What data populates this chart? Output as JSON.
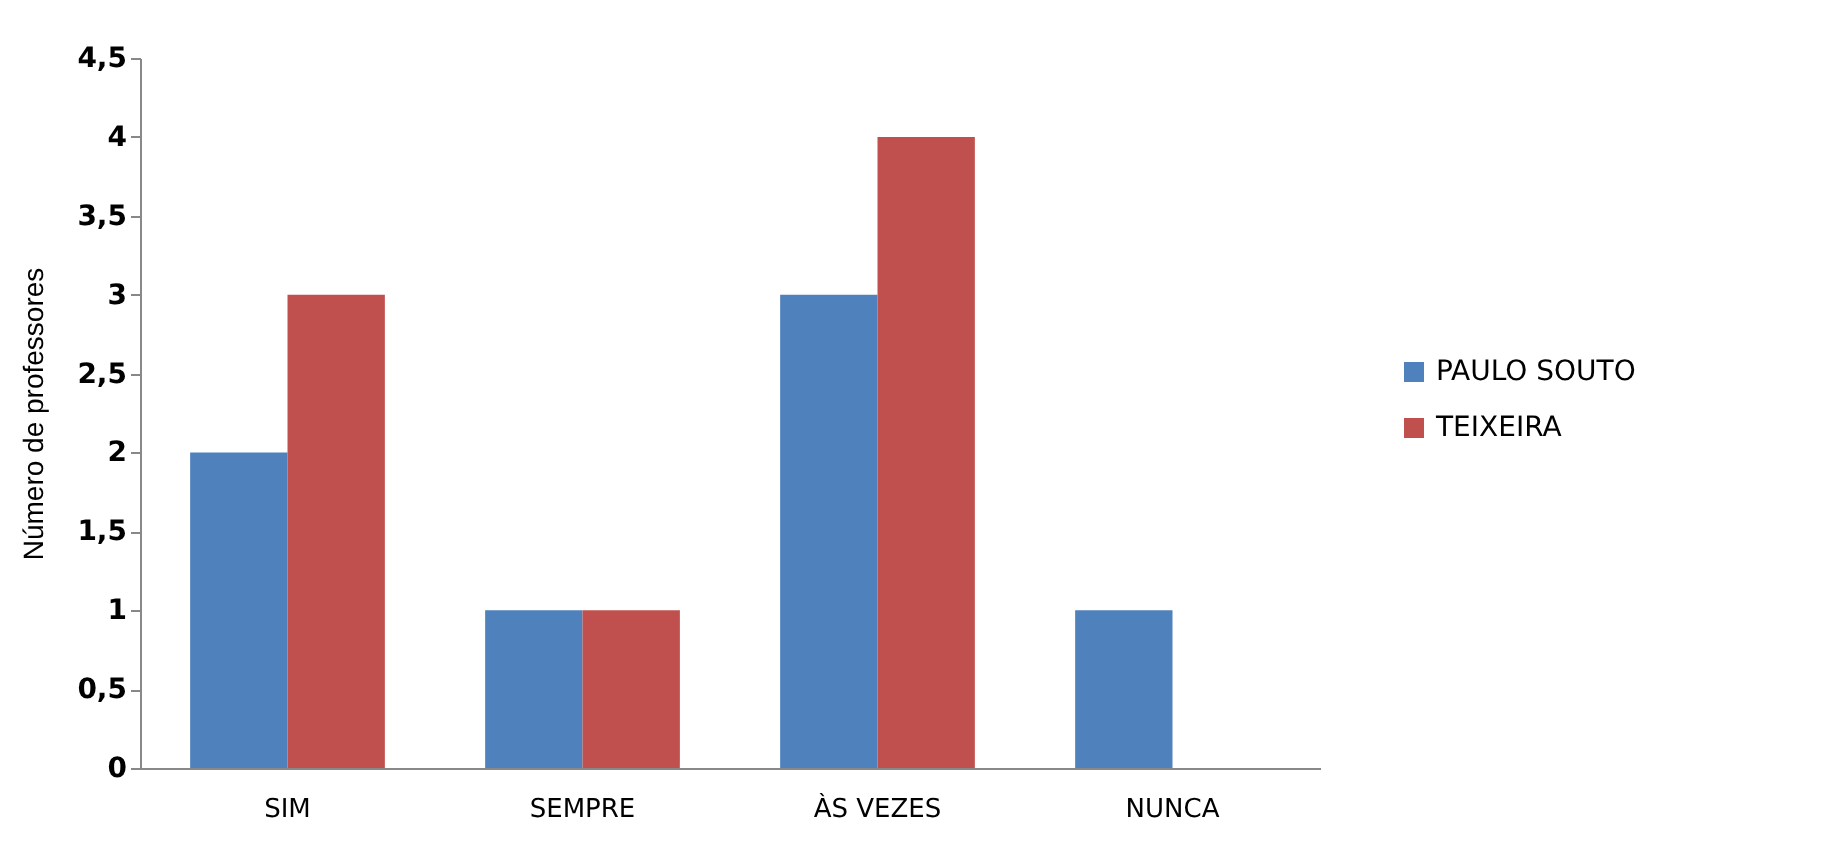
{
  "chart_data": {
    "type": "bar",
    "ylabel": "Número de professores",
    "categories": [
      "SIM",
      "SEMPRE",
      "ÀS VEZES",
      "NUNCA"
    ],
    "series": [
      {
        "name": "PAULO SOUTO",
        "color": "#4f81bd",
        "values": [
          2,
          1,
          3,
          1
        ]
      },
      {
        "name": "TEIXEIRA",
        "color": "#c0504d",
        "values": [
          3,
          1,
          4,
          0
        ]
      }
    ],
    "ylim": [
      0,
      4.5
    ],
    "yticks": [
      0,
      {
        "value": 0.5,
        "label": "0,5"
      },
      1,
      {
        "value": 1.5,
        "label": "1,5"
      },
      2,
      {
        "value": 2.5,
        "label": "2,5"
      },
      3,
      {
        "value": 3.5,
        "label": "3,5"
      },
      4,
      {
        "value": 4.5,
        "label": "4,5"
      }
    ],
    "grid": false,
    "legend": "right"
  }
}
